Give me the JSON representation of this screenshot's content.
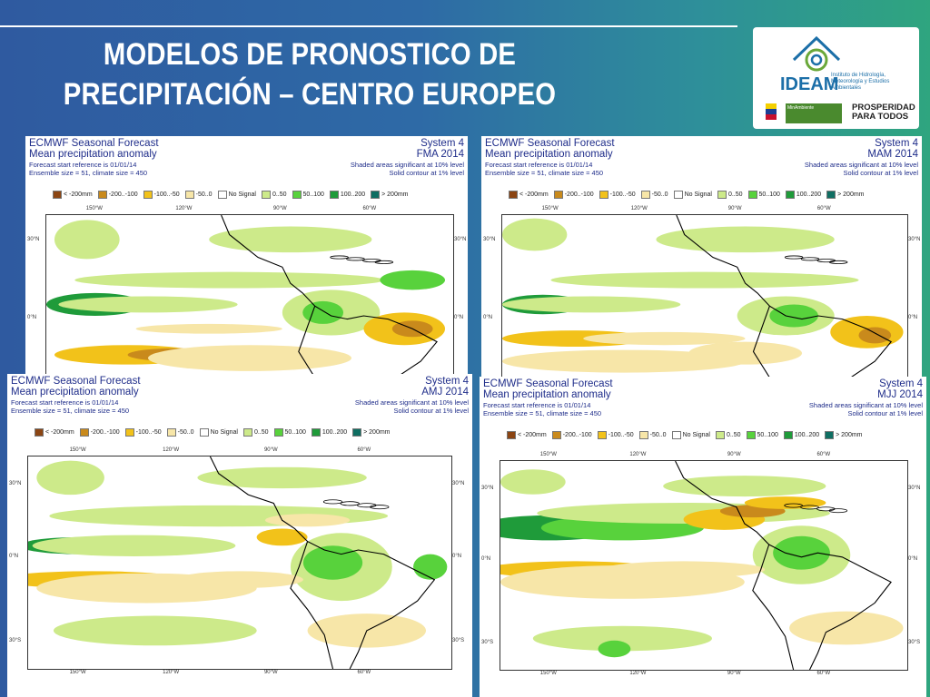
{
  "slide": {
    "title_line1": "MODELOS DE PRONOSTICO DE",
    "title_line2": "PRECIPITACIÓN – CENTRO EUROPEO"
  },
  "logo": {
    "brand": "IDEAM",
    "subtitle": "Instituto de Hidrología, Meteorología y Estudios Ambientales",
    "ministry": "MinAmbiente",
    "slogan": "PROSPERIDAD PARA TODOS"
  },
  "colors": {
    "c_lt200": "#8b4513",
    "c_200_100": "#c98a1c",
    "c_100_50": "#f2c21a",
    "c_50_0": "#f7e6a8",
    "c_nosignal": "#ffffff",
    "c_0_50": "#cdea8a",
    "c_50_100": "#58d23c",
    "c_100_200": "#1f9b3a",
    "c_gt200": "#0f6e62"
  },
  "legend": [
    {
      "label": "< -200mm",
      "color": "#8b4513"
    },
    {
      "label": "-200..-100",
      "color": "#c98a1c"
    },
    {
      "label": "-100..-50",
      "color": "#f2c21a"
    },
    {
      "label": "-50..0",
      "color": "#f7e6a8"
    },
    {
      "label": "No Signal",
      "color": "#ffffff"
    },
    {
      "label": "0..50",
      "color": "#cdea8a"
    },
    {
      "label": "50..100",
      "color": "#58d23c"
    },
    {
      "label": "100..200",
      "color": "#1f9b3a"
    },
    {
      "label": "> 200mm",
      "color": "#0f6e62"
    }
  ],
  "panels": [
    {
      "title": "ECMWF Seasonal Forecast",
      "subtitle": "Mean precipitation anomaly",
      "ref": "Forecast start reference is 01/01/14",
      "ensemble": "Ensemble size = 51, climate size = 450",
      "system": "System 4",
      "season": "FMA 2014",
      "shaded": "Shaded areas significant at 10% level",
      "contour": "Solid contour at 1% level",
      "lon_ticks": [
        "150°W",
        "120°W",
        "90°W",
        "60°W"
      ],
      "lat_left": [
        "30°N",
        "0°N"
      ],
      "lat_right": [
        "30°N",
        "0°N"
      ]
    },
    {
      "title": "ECMWF Seasonal Forecast",
      "subtitle": "Mean precipitation anomaly",
      "ref": "Forecast start reference is 01/01/14",
      "ensemble": "Ensemble size = 51, climate size = 450",
      "system": "System 4",
      "season": "MAM 2014",
      "shaded": "Shaded areas significant at 10% level",
      "contour": "Solid contour at 1% level",
      "lon_ticks": [
        "150°W",
        "120°W",
        "90°W",
        "60°W"
      ],
      "lat_left": [
        "30°N",
        "0°N"
      ],
      "lat_right": [
        "30°N",
        "0°N"
      ]
    },
    {
      "title": "ECMWF Seasonal Forecast",
      "subtitle": "Mean precipitation anomaly",
      "ref": "Forecast start reference is 01/01/14",
      "ensemble": "Ensemble size = 51, climate size = 450",
      "system": "System 4",
      "season": "AMJ 2014",
      "shaded": "Shaded areas significant at 10% level",
      "contour": "Solid contour at 1% level",
      "lon_ticks": [
        "150°W",
        "120°W",
        "90°W",
        "60°W"
      ],
      "lon_ticks_bottom": [
        "150°W",
        "120°W",
        "90°W",
        "60°W"
      ],
      "lat_left": [
        "30°N",
        "0°N",
        "30°S"
      ],
      "lat_right": [
        "30°N",
        "0°N",
        "30°S"
      ]
    },
    {
      "title": "ECMWF Seasonal Forecast",
      "subtitle": "Mean precipitation anomaly",
      "ref": "Forecast start reference is 01/01/14",
      "ensemble": "Ensemble size = 51, climate size = 450",
      "system": "System 4",
      "season": "MJJ 2014",
      "shaded": "Shaded areas significant at 10% level",
      "contour": "Solid contour at 1% level",
      "lon_ticks": [
        "150°W",
        "120°W",
        "90°W",
        "60°W"
      ],
      "lon_ticks_bottom": [
        "150°W",
        "120°W",
        "90°W",
        "60°W"
      ],
      "lat_left": [
        "30°N",
        "0°N",
        "30°S"
      ],
      "lat_right": [
        "30°N",
        "0°N",
        "30°S"
      ]
    }
  ]
}
